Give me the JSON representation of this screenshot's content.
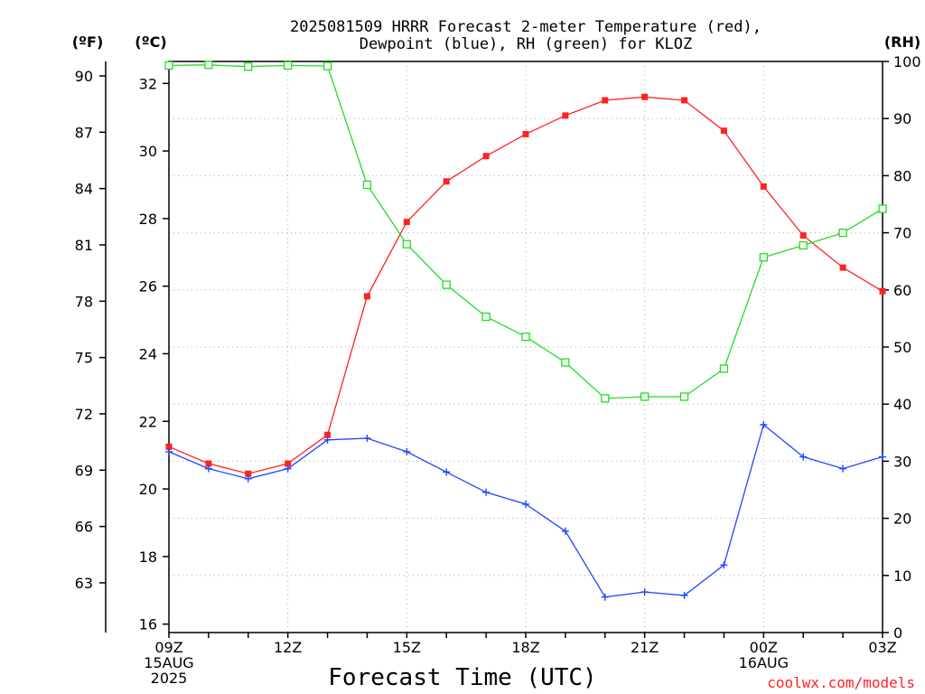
{
  "chart_data": {
    "type": "line",
    "title": [
      "2025081509 HRRR Forecast 2-meter Temperature (red),",
      "Dewpoint (blue), RH (green) for KLOZ"
    ],
    "xlabel": "Forecast Time (UTC)",
    "x": [
      "09Z",
      "10Z",
      "11Z",
      "12Z",
      "13Z",
      "14Z",
      "15Z",
      "16Z",
      "17Z",
      "18Z",
      "19Z",
      "20Z",
      "21Z",
      "22Z",
      "23Z",
      "00Z",
      "01Z",
      "02Z",
      "03Z"
    ],
    "x_tick_labels": [
      {
        "index": 0,
        "lines": [
          "09Z",
          "15AUG",
          "2025"
        ]
      },
      {
        "index": 3,
        "lines": [
          "12Z"
        ]
      },
      {
        "index": 6,
        "lines": [
          "15Z"
        ]
      },
      {
        "index": 9,
        "lines": [
          "18Z"
        ]
      },
      {
        "index": 12,
        "lines": [
          "21Z"
        ]
      },
      {
        "index": 15,
        "lines": [
          "00Z",
          "16AUG"
        ]
      },
      {
        "index": 18,
        "lines": [
          "03Z"
        ]
      }
    ],
    "axes": {
      "fahrenheit": {
        "unit_label": "(ºF)",
        "ticks": [
          63,
          66,
          69,
          72,
          75,
          78,
          81,
          84,
          87,
          90
        ]
      },
      "celsius": {
        "unit_label": "(ºC)",
        "range": [
          15.75,
          32.65
        ],
        "ticks": [
          16,
          18,
          20,
          22,
          24,
          26,
          28,
          30,
          32
        ]
      },
      "rh": {
        "unit_label": "(RH)",
        "range": [
          0,
          100
        ],
        "ticks": [
          0,
          10,
          20,
          30,
          40,
          50,
          60,
          70,
          80,
          90,
          100
        ]
      }
    },
    "grid": true,
    "series": [
      {
        "name": "Temperature",
        "axis": "celsius",
        "color": "#ff2222",
        "marker": "filled-square",
        "values": [
          21.25,
          20.75,
          20.45,
          20.75,
          21.6,
          25.7,
          27.9,
          29.1,
          29.85,
          30.5,
          31.05,
          31.5,
          31.6,
          31.5,
          30.6,
          28.95,
          27.5,
          26.55,
          25.85
        ]
      },
      {
        "name": "Dewpoint",
        "axis": "celsius",
        "color": "#2244ff",
        "marker": "plus",
        "values": [
          21.1,
          20.6,
          20.3,
          20.6,
          21.45,
          21.5,
          21.1,
          20.5,
          19.9,
          19.55,
          18.75,
          16.8,
          16.95,
          16.85,
          17.75,
          21.9,
          20.95,
          20.6,
          20.95
        ]
      },
      {
        "name": "RH",
        "axis": "rh",
        "color": "#22dd22",
        "marker": "open-square",
        "values": [
          99.3,
          99.4,
          99.1,
          99.3,
          99.2,
          78.4,
          68.0,
          60.9,
          55.3,
          51.8,
          47.3,
          41.0,
          41.3,
          41.3,
          46.2,
          65.7,
          67.8,
          70.0,
          74.2
        ]
      }
    ]
  },
  "credit": "coolwx.com/models"
}
